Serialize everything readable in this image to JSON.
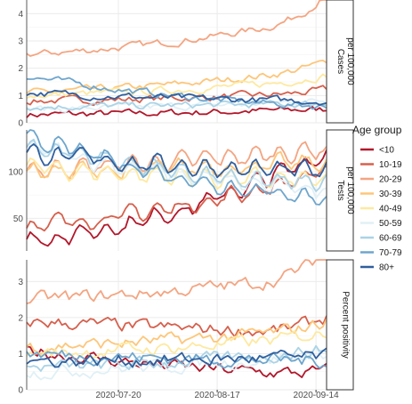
{
  "chart_data": {
    "type": "line",
    "x_ticks": [
      "2020-07-20",
      "2020-08-17",
      "2020-09-14"
    ],
    "x_range": [
      "2020-06-24",
      "2020-09-17"
    ],
    "legend": {
      "title": "Age group",
      "placement": "right"
    },
    "series": [
      {
        "name": "<10",
        "color": "#b2182b"
      },
      {
        "name": "10-19",
        "color": "#d6604d"
      },
      {
        "name": "20-29",
        "color": "#f4a582"
      },
      {
        "name": "30-39",
        "color": "#fdc67a"
      },
      {
        "name": "40-49",
        "color": "#fee9a0"
      },
      {
        "name": "50-59",
        "color": "#e0f0f6"
      },
      {
        "name": "60-69",
        "color": "#abd3e6"
      },
      {
        "name": "70-79",
        "color": "#6fa6cd"
      },
      {
        "name": "80+",
        "color": "#2f5f9e"
      }
    ],
    "panels": [
      {
        "strip": [
          "Cases",
          "per 100,000"
        ],
        "ylim": [
          0,
          4.5
        ],
        "y_ticks": [
          0,
          1,
          2,
          3,
          4
        ],
        "start": [
          0.3,
          0.8,
          2.5,
          1.1,
          1.0,
          0.5,
          0.6,
          1.7,
          1.1
        ],
        "end": [
          0.5,
          1.1,
          3.9,
          2.0,
          1.6,
          0.8,
          0.7,
          0.6,
          0.8
        ],
        "noise": 0.16,
        "uptrend": [
          0,
          0.3,
          2.2,
          0.7,
          0.4,
          0.1,
          0.05,
          0,
          0
        ]
      },
      {
        "strip": [
          "Tests",
          "per 100,000"
        ],
        "ylim": [
          15,
          145
        ],
        "y_ticks": [
          50,
          100
        ],
        "start": [
          25,
          42,
          103,
          100,
          105,
          127,
          130,
          138,
          120
        ],
        "end": [
          120,
          100,
          125,
          110,
          90,
          80,
          86,
          72,
          100
        ],
        "noise": 6,
        "uptrend": [
          0,
          0,
          0,
          0,
          0,
          0,
          0,
          0,
          0
        ]
      },
      {
        "strip": [
          "Percent positivity"
        ],
        "ylim": [
          0,
          3.6
        ],
        "y_ticks": [
          0,
          1,
          2,
          3
        ],
        "start": [
          1.1,
          1.9,
          2.5,
          1.2,
          1.0,
          0.5,
          0.6,
          1.0,
          0.8
        ],
        "end": [
          0.4,
          1.6,
          3.2,
          1.7,
          1.5,
          1.0,
          1.1,
          0.8,
          0.9
        ],
        "noise": 0.22,
        "uptrend": [
          0.3,
          1.2,
          1.8,
          0.6,
          0.3,
          0.1,
          0.05,
          0,
          0
        ]
      }
    ]
  }
}
